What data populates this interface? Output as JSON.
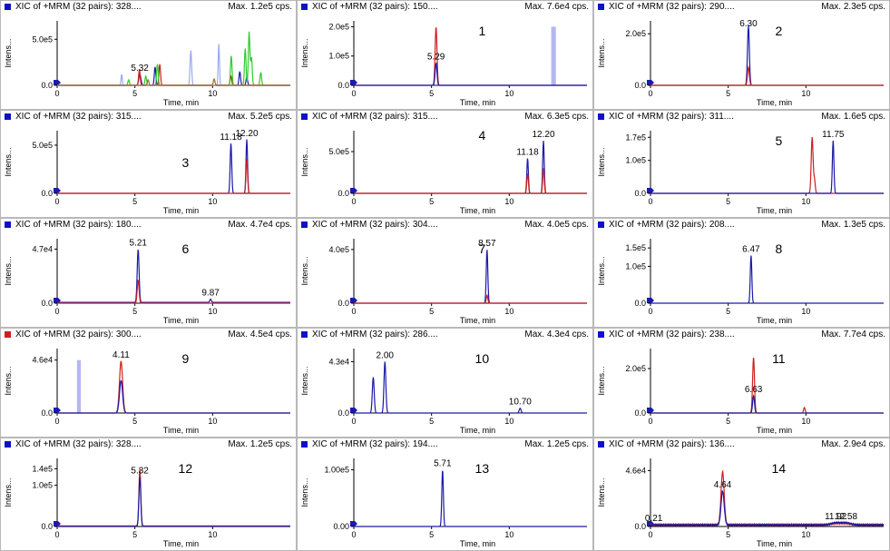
{
  "panel_common": {
    "y_axis_label": "Intens...",
    "x_axis_label": "Time, min"
  },
  "chart_data": [
    {
      "type": "line",
      "title": "XIC of +MRM (32 pairs): 328....",
      "max_label": "Max. 1.2e5 cps.",
      "header_color": "#1010c8",
      "panel_number": "",
      "xlim": [
        0,
        15
      ],
      "ylim": [
        0,
        700000
      ],
      "xticks": [
        0,
        5,
        10
      ],
      "ytick_labels": [
        {
          "v": 500000,
          "t": "5.0e5"
        },
        {
          "v": 0,
          "t": "0.0"
        }
      ],
      "peak_labels": [
        {
          "x": 5.32,
          "y": 120000,
          "text": "5.32"
        }
      ],
      "series": [
        {
          "color": "#1a1aa8",
          "peaks": [
            [
              5.32,
              120000,
              0.07
            ],
            [
              6.3,
              200000,
              0.05
            ],
            [
              11.75,
              150000,
              0.05
            ],
            [
              12.2,
              90000,
              0.05
            ]
          ]
        },
        {
          "color": "#cc2020",
          "peaks": [
            [
              5.29,
              170000,
              0.05
            ],
            [
              6.6,
              230000,
              0.05
            ],
            [
              11.18,
              100000,
              0.05
            ]
          ]
        },
        {
          "color": "#30cc30",
          "peaks": [
            [
              4.6,
              60000,
              0.05
            ],
            [
              5.7,
              100000,
              0.05
            ],
            [
              6.45,
              230000,
              0.05
            ],
            [
              11.2,
              320000,
              0.05
            ],
            [
              12.1,
              400000,
              0.05
            ],
            [
              12.35,
              580000,
              0.05
            ],
            [
              12.5,
              300000,
              0.05
            ],
            [
              13.1,
              140000,
              0.05
            ]
          ]
        },
        {
          "color": "#9aaaf0",
          "peaks": [
            [
              4.15,
              120000,
              0.04
            ],
            [
              8.6,
              380000,
              0.05
            ],
            [
              10.4,
              450000,
              0.04
            ]
          ]
        },
        {
          "color": "#a86a2a",
          "peaks": [
            [
              5.85,
              60000,
              0.05
            ],
            [
              10.1,
              70000,
              0.05
            ]
          ]
        }
      ]
    },
    {
      "type": "line",
      "title": "XIC of +MRM (32 pairs): 150....",
      "max_label": "Max. 7.6e4 cps.",
      "header_color": "#1010c8",
      "panel_number": "1",
      "xlim": [
        0,
        15
      ],
      "ylim": [
        0,
        220000
      ],
      "xticks": [
        0,
        5,
        10
      ],
      "ytick_labels": [
        {
          "v": 200000,
          "t": "2.0e5"
        },
        {
          "v": 100000,
          "t": "1.0e5"
        },
        {
          "v": 0,
          "t": "0.0"
        }
      ],
      "peak_labels": [
        {
          "x": 5.29,
          "y": 76000,
          "text": "5.29"
        }
      ],
      "series": [
        {
          "color": "#cc2020",
          "peaks": [
            [
              5.29,
              200000,
              0.06
            ]
          ]
        },
        {
          "color": "#1a1aa8",
          "peaks": [
            [
              5.29,
              76000,
              0.06
            ]
          ]
        }
      ],
      "bands": [
        {
          "x": 12.85,
          "w": 0.3,
          "y": 200000
        }
      ]
    },
    {
      "type": "line",
      "title": "XIC of +MRM (32 pairs): 290....",
      "max_label": "Max. 2.3e5 cps.",
      "header_color": "#1010c8",
      "panel_number": "2",
      "xlim": [
        0,
        15
      ],
      "ylim": [
        0,
        250000
      ],
      "xticks": [
        0,
        5,
        10
      ],
      "ytick_labels": [
        {
          "v": 200000,
          "t": "2.0e5"
        },
        {
          "v": 0,
          "t": "0.0"
        }
      ],
      "peak_labels": [
        {
          "x": 6.3,
          "y": 230000,
          "text": "6.30"
        }
      ],
      "series": [
        {
          "color": "#1a1aa8",
          "peaks": [
            [
              6.3,
              230000,
              0.06
            ]
          ]
        },
        {
          "color": "#cc2020",
          "peaks": [
            [
              6.3,
              70000,
              0.06
            ]
          ]
        }
      ]
    },
    {
      "type": "line",
      "title": "XIC of +MRM (32 pairs): 315....",
      "max_label": "Max. 5.2e5 cps.",
      "header_color": "#1010c8",
      "panel_number": "3",
      "xlim": [
        0,
        15
      ],
      "ylim": [
        0,
        650000
      ],
      "xticks": [
        0,
        5,
        10
      ],
      "ytick_labels": [
        {
          "v": 500000,
          "t": "5.0e5"
        },
        {
          "v": 0,
          "t": "0.0"
        }
      ],
      "peak_labels": [
        {
          "x": 11.18,
          "y": 520000,
          "text": "11.18"
        },
        {
          "x": 12.2,
          "y": 560000,
          "text": "12.20"
        }
      ],
      "series": [
        {
          "color": "#1a1aa8",
          "peaks": [
            [
              11.18,
              520000,
              0.05
            ],
            [
              12.2,
              560000,
              0.05
            ]
          ]
        },
        {
          "color": "#cc2020",
          "peaks": [
            [
              12.2,
              360000,
              0.05
            ]
          ]
        }
      ]
    },
    {
      "type": "line",
      "title": "XIC of +MRM (32 pairs): 315....",
      "max_label": "Max. 6.3e5 cps.",
      "header_color": "#1010c8",
      "panel_number": "4",
      "xlim": [
        0,
        15
      ],
      "ylim": [
        0,
        750000
      ],
      "xticks": [
        0,
        5,
        10
      ],
      "ytick_labels": [
        {
          "v": 500000,
          "t": "5.0e5"
        },
        {
          "v": 0,
          "t": "0.0"
        }
      ],
      "peak_labels": [
        {
          "x": 11.18,
          "y": 420000,
          "text": "11.18"
        },
        {
          "x": 12.2,
          "y": 630000,
          "text": "12.20"
        }
      ],
      "series": [
        {
          "color": "#1a1aa8",
          "peaks": [
            [
              11.18,
              420000,
              0.05
            ],
            [
              12.2,
              630000,
              0.05
            ]
          ]
        },
        {
          "color": "#cc2020",
          "peaks": [
            [
              11.18,
              240000,
              0.05
            ],
            [
              12.2,
              300000,
              0.05
            ]
          ]
        }
      ]
    },
    {
      "type": "line",
      "title": "XIC of +MRM (32 pairs): 311....",
      "max_label": "Max. 1.6e5 cps.",
      "header_color": "#1010c8",
      "panel_number": "5",
      "xlim": [
        0,
        15
      ],
      "ylim": [
        0,
        190000
      ],
      "xticks": [
        0,
        5,
        10
      ],
      "ytick_labels": [
        {
          "v": 170000,
          "t": "1.7e5"
        },
        {
          "v": 100000,
          "t": "1.0e5"
        },
        {
          "v": 0,
          "t": "0.0"
        }
      ],
      "peak_labels": [
        {
          "x": 11.75,
          "y": 160000,
          "text": "11.75"
        }
      ],
      "series": [
        {
          "color": "#cc2020",
          "peaks": [
            [
              10.4,
              170000,
              0.06
            ],
            [
              10.55,
              40000,
              0.05
            ]
          ]
        },
        {
          "color": "#1a1aa8",
          "peaks": [
            [
              11.75,
              160000,
              0.05
            ]
          ]
        }
      ]
    },
    {
      "type": "line",
      "title": "XIC of +MRM (32 pairs): 180....",
      "max_label": "Max. 4.7e4 cps.",
      "header_color": "#1010c8",
      "panel_number": "6",
      "xlim": [
        0,
        15
      ],
      "ylim": [
        0,
        56000
      ],
      "xticks": [
        0,
        5,
        10
      ],
      "ytick_labels": [
        {
          "v": 47000,
          "t": "4.7e4"
        },
        {
          "v": 0,
          "t": "0.0"
        }
      ],
      "peak_labels": [
        {
          "x": 5.21,
          "y": 47000,
          "text": "5.21"
        },
        {
          "x": 9.87,
          "y": 3500,
          "text": "9.87"
        }
      ],
      "series": [
        {
          "color": "#1a1aa8",
          "peaks": [
            [
              5.21,
              47000,
              0.06
            ],
            [
              9.87,
              3500,
              0.05
            ]
          ],
          "baseline": 700
        },
        {
          "color": "#cc2020",
          "peaks": [
            [
              5.21,
              20000,
              0.06
            ]
          ]
        }
      ]
    },
    {
      "type": "line",
      "title": "XIC of +MRM (32 pairs): 304....",
      "max_label": "Max. 4.0e5 cps.",
      "header_color": "#1010c8",
      "panel_number": "7",
      "xlim": [
        0,
        15
      ],
      "ylim": [
        0,
        480000
      ],
      "xticks": [
        0,
        5,
        10
      ],
      "ytick_labels": [
        {
          "v": 400000,
          "t": "4.0e5"
        },
        {
          "v": 0,
          "t": "0.0"
        }
      ],
      "peak_labels": [
        {
          "x": 8.57,
          "y": 400000,
          "text": "8.57"
        }
      ],
      "series": [
        {
          "color": "#1a1aa8",
          "peaks": [
            [
              8.57,
              400000,
              0.05
            ]
          ]
        },
        {
          "color": "#cc2020",
          "peaks": [
            [
              8.57,
              60000,
              0.05
            ]
          ]
        }
      ]
    },
    {
      "type": "line",
      "title": "XIC of +MRM (32 pairs): 208....",
      "max_label": "Max. 1.3e5 cps.",
      "header_color": "#1010c8",
      "panel_number": "8",
      "xlim": [
        0,
        15
      ],
      "ylim": [
        0,
        175000
      ],
      "xticks": [
        0,
        5,
        10
      ],
      "ytick_labels": [
        {
          "v": 150000,
          "t": "1.5e5"
        },
        {
          "v": 100000,
          "t": "1.0e5"
        },
        {
          "v": 0,
          "t": "0.0"
        }
      ],
      "peak_labels": [
        {
          "x": 6.47,
          "y": 130000,
          "text": "6.47"
        }
      ],
      "series": [
        {
          "color": "#1a1aa8",
          "peaks": [
            [
              6.47,
              130000,
              0.05
            ]
          ]
        }
      ]
    },
    {
      "type": "line",
      "title": "XIC of +MRM (32 pairs): 300....",
      "max_label": "Max. 4.5e4 cps.",
      "header_color": "#cc2020",
      "panel_number": "9",
      "xlim": [
        0,
        15
      ],
      "ylim": [
        0,
        56000
      ],
      "xticks": [
        0,
        5,
        10
      ],
      "ytick_labels": [
        {
          "v": 46000,
          "t": "4.6e4"
        },
        {
          "v": 0,
          "t": "0.0"
        }
      ],
      "peak_labels": [
        {
          "x": 4.11,
          "y": 45000,
          "text": "4.11"
        }
      ],
      "series": [
        {
          "color": "#cc2020",
          "peaks": [
            [
              4.11,
              45000,
              0.1
            ]
          ]
        },
        {
          "color": "#1a1aa8",
          "peaks": [
            [
              4.11,
              28000,
              0.1
            ]
          ]
        }
      ],
      "bands": [
        {
          "x": 1.4,
          "w": 0.25,
          "y": 46000
        }
      ]
    },
    {
      "type": "line",
      "title": "XIC of +MRM (32 pairs): 286....",
      "max_label": "Max. 4.3e4 cps.",
      "header_color": "#1010c8",
      "panel_number": "10",
      "xlim": [
        0,
        15
      ],
      "ylim": [
        0,
        54000
      ],
      "xticks": [
        0,
        5,
        10
      ],
      "ytick_labels": [
        {
          "v": 43000,
          "t": "4.3e4"
        },
        {
          "v": 0,
          "t": "0.0"
        }
      ],
      "peak_labels": [
        {
          "x": 2.0,
          "y": 43000,
          "text": "2.00"
        },
        {
          "x": 10.7,
          "y": 4000,
          "text": "10.70"
        }
      ],
      "series": [
        {
          "color": "#1a1aa8",
          "peaks": [
            [
              1.25,
              30000,
              0.06
            ],
            [
              2.0,
              43000,
              0.06
            ],
            [
              10.7,
              4000,
              0.06
            ]
          ]
        }
      ]
    },
    {
      "type": "line",
      "title": "XIC of +MRM (32 pairs): 238....",
      "max_label": "Max. 7.7e4 cps.",
      "header_color": "#1010c8",
      "panel_number": "11",
      "xlim": [
        0,
        15
      ],
      "ylim": [
        0,
        290000
      ],
      "xticks": [
        0,
        5,
        10
      ],
      "ytick_labels": [
        {
          "v": 200000,
          "t": "2.0e5"
        },
        {
          "v": 0,
          "t": "0.0"
        }
      ],
      "peak_labels": [
        {
          "x": 6.63,
          "y": 77000,
          "text": "6.63"
        }
      ],
      "series": [
        {
          "color": "#cc2020",
          "peaks": [
            [
              6.63,
              250000,
              0.06
            ],
            [
              9.9,
              25000,
              0.05
            ]
          ]
        },
        {
          "color": "#1a1aa8",
          "peaks": [
            [
              6.63,
              77000,
              0.06
            ]
          ]
        }
      ]
    },
    {
      "type": "line",
      "title": "XIC of +MRM (32 pairs): 328....",
      "max_label": "Max. 1.2e5 cps.",
      "header_color": "#1010c8",
      "panel_number": "12",
      "xlim": [
        0,
        15
      ],
      "ylim": [
        0,
        165000
      ],
      "xticks": [
        0,
        5,
        10
      ],
      "ytick_labels": [
        {
          "v": 140000,
          "t": "1.4e5"
        },
        {
          "v": 100000,
          "t": "1.0e5"
        },
        {
          "v": 0,
          "t": "0.0"
        }
      ],
      "peak_labels": [
        {
          "x": 5.32,
          "y": 120000,
          "text": "5.32"
        }
      ],
      "series": [
        {
          "color": "#cc2020",
          "peaks": [
            [
              5.32,
              140000,
              0.06
            ]
          ],
          "baseline": 1500
        },
        {
          "color": "#1a1aa8",
          "peaks": [
            [
              5.32,
              120000,
              0.06
            ]
          ]
        }
      ]
    },
    {
      "type": "line",
      "title": "XIC of +MRM (32 pairs): 194....",
      "max_label": "Max. 1.2e5 cps.",
      "header_color": "#1010c8",
      "panel_number": "13",
      "xlim": [
        0,
        15
      ],
      "ylim": [
        0,
        120000
      ],
      "xticks": [
        0,
        5,
        10
      ],
      "ytick_labels": [
        {
          "v": 100000,
          "t": "1.00e5"
        },
        {
          "v": 0,
          "t": "0.00"
        }
      ],
      "peak_labels": [
        {
          "x": 5.71,
          "y": 100000,
          "text": "5.71"
        }
      ],
      "series": [
        {
          "color": "#1a1aa8",
          "peaks": [
            [
              5.71,
              100000,
              0.05
            ]
          ]
        }
      ]
    },
    {
      "type": "line",
      "title": "XIC of +MRM (32 pairs): 136....",
      "max_label": "Max. 2.9e4 cps.",
      "header_color": "#1010c8",
      "panel_number": "14",
      "xlim": [
        0,
        15
      ],
      "ylim": [
        0,
        56000
      ],
      "xticks": [
        0,
        5,
        10
      ],
      "ytick_labels": [
        {
          "v": 46000,
          "t": "4.6e4"
        },
        {
          "v": 0,
          "t": "0.0"
        }
      ],
      "peak_labels": [
        {
          "x": 0.21,
          "y": 1500,
          "text": "0.21"
        },
        {
          "x": 4.64,
          "y": 29000,
          "text": "4.64"
        },
        {
          "x": 11.92,
          "y": 3000,
          "text": "11.92"
        },
        {
          "x": 12.58,
          "y": 3000,
          "text": "12.58"
        }
      ],
      "series": [
        {
          "color": "#cc2020",
          "peaks": [
            [
              4.64,
              45000,
              0.1
            ],
            [
              11.92,
              2500,
              0.3
            ],
            [
              12.58,
              2500,
              0.3
            ]
          ],
          "baseline": 1500,
          "noise": true
        },
        {
          "color": "#1a1aa8",
          "peaks": [
            [
              4.64,
              29000,
              0.1
            ],
            [
              11.92,
              3000,
              0.3
            ],
            [
              12.58,
              3000,
              0.3
            ]
          ],
          "baseline": 1200,
          "noise": true
        }
      ]
    }
  ]
}
